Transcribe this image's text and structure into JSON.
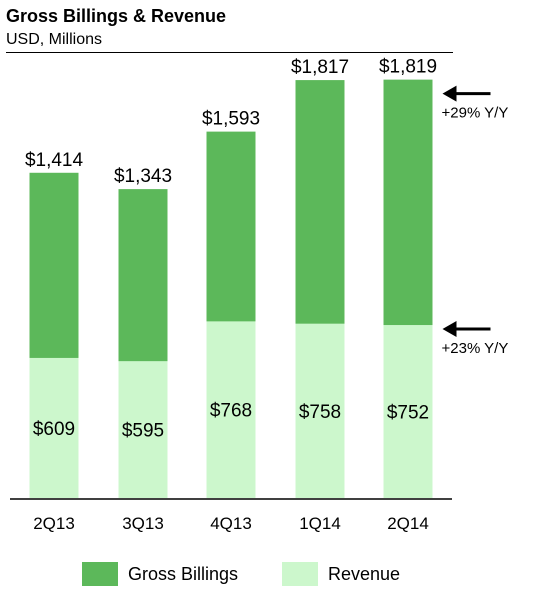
{
  "title": "Gross Billings & Revenue",
  "subtitle": "USD, Millions",
  "colors": {
    "gross_billings": "#5cb85a",
    "revenue": "#ccf7cc",
    "axis": "#000000"
  },
  "chart_data": {
    "type": "bar",
    "stacked": "overlay",
    "categories": [
      "2Q13",
      "3Q13",
      "4Q13",
      "1Q14",
      "2Q14"
    ],
    "series": [
      {
        "name": "Gross Billings",
        "values": [
          1414,
          1343,
          1593,
          1817,
          1819
        ],
        "labels": [
          "$1,414",
          "$1,343",
          "$1,593",
          "$1,817",
          "$1,819"
        ]
      },
      {
        "name": "Revenue",
        "values": [
          609,
          595,
          768,
          758,
          752
        ],
        "labels": [
          "$609",
          "$595",
          "$768",
          "$758",
          "$752"
        ]
      }
    ],
    "annotations": [
      "+29% Y/Y",
      "+23% Y/Y"
    ],
    "ylim": [
      0,
      2000
    ],
    "grid": false,
    "legend_position": "bottom"
  }
}
